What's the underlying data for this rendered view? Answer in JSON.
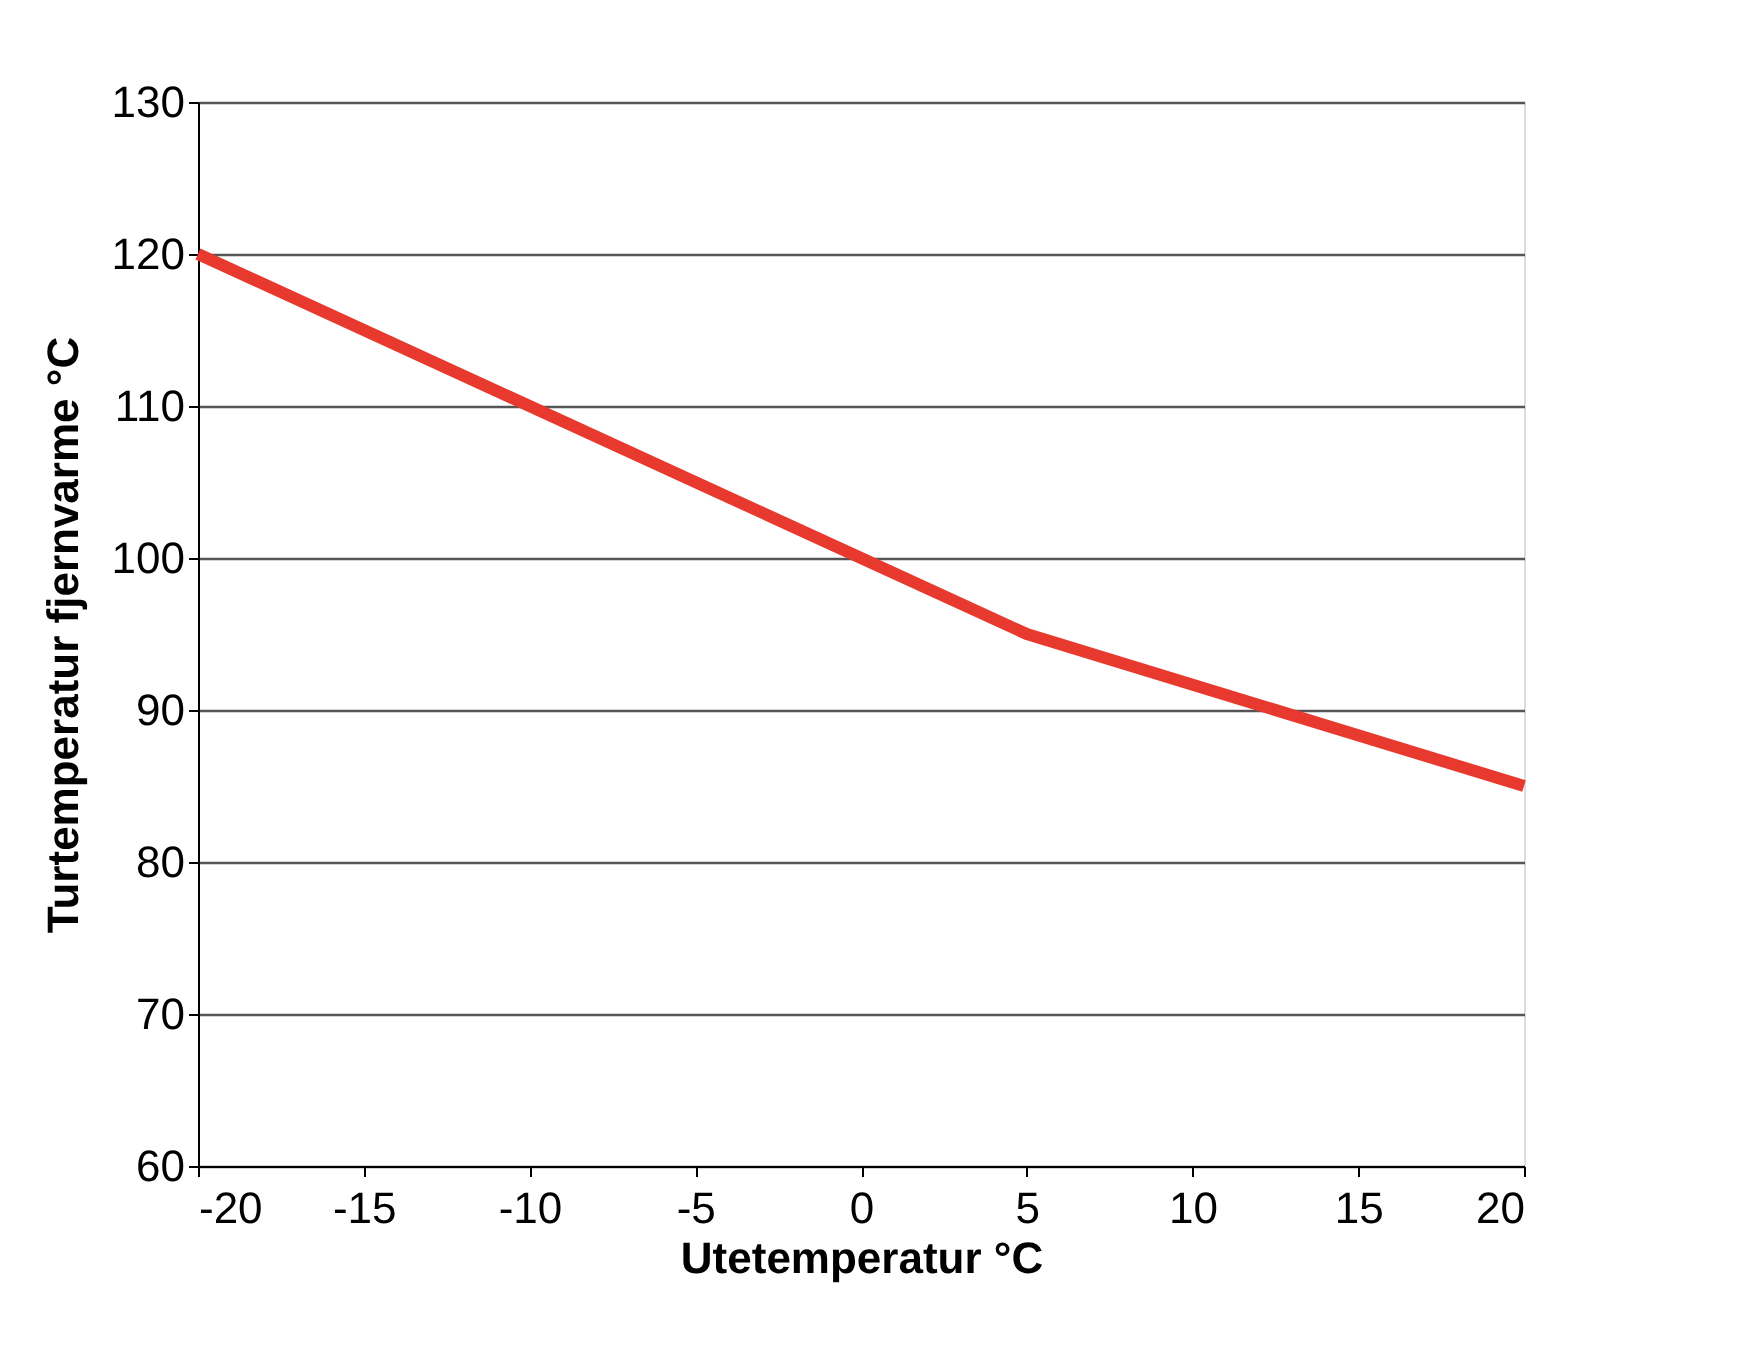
{
  "chart_data": {
    "type": "line",
    "xlabel": "Utetemperatur °C",
    "ylabel": "Turtemperatur fjernvarme °C",
    "x": [
      -20,
      -10,
      0,
      5,
      20
    ],
    "series": [
      {
        "color": "#e8392e",
        "values": [
          120,
          110,
          100,
          95,
          85
        ]
      }
    ],
    "xlim": [
      -20,
      20
    ],
    "xticks": [
      -20,
      -15,
      -10,
      -5,
      0,
      5,
      10,
      15,
      20
    ],
    "ylim": [
      60,
      130
    ],
    "yticks": [
      60,
      70,
      80,
      90,
      100,
      110,
      120,
      130
    ],
    "grid": "y",
    "marker": "none",
    "line_style": "solid"
  }
}
